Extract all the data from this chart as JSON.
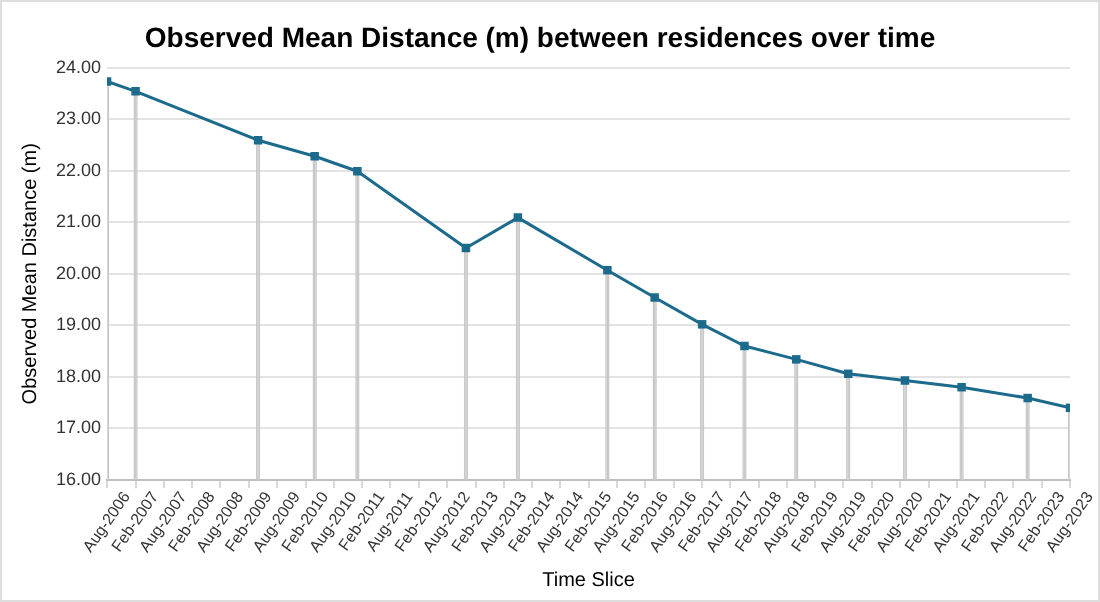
{
  "chart_data": {
    "type": "line",
    "title": "Observed Mean Distance (m) between residences over time",
    "xlabel": "Time Slice",
    "ylabel": "Observed Mean Distance (m)",
    "x": [
      "2006-08",
      "2007-02",
      "2009-04",
      "2010-04",
      "2011-01",
      "2012-12",
      "2013-11",
      "2015-06",
      "2016-04",
      "2017-02",
      "2017-11",
      "2018-10",
      "2019-09",
      "2020-09",
      "2021-09",
      "2022-11",
      "2023-08"
    ],
    "series": [
      {
        "type": "bar",
        "color": "#c8c8c8",
        "values": [
          23.73,
          23.54,
          22.59,
          22.28,
          21.99,
          20.5,
          21.09,
          20.07,
          19.54,
          19.02,
          18.6,
          18.34,
          18.06,
          17.93,
          17.8,
          17.59,
          17.4
        ]
      },
      {
        "color": "#1c6a8c",
        "values": [
          23.73,
          23.54,
          22.59,
          22.28,
          21.99,
          20.5,
          21.09,
          20.07,
          19.54,
          19.02,
          18.6,
          18.34,
          18.06,
          17.93,
          17.8,
          17.59,
          17.4
        ]
      }
    ],
    "xlim": [
      "2006-08",
      "2023-08"
    ],
    "xticks": [
      {
        "value": "2006-08",
        "label": "Aug-2006"
      },
      {
        "value": "2007-02",
        "label": "Feb-2007"
      },
      {
        "value": "2007-08",
        "label": "Aug-2007"
      },
      {
        "value": "2008-02",
        "label": "Feb-2008"
      },
      {
        "value": "2008-08",
        "label": "Aug-2008"
      },
      {
        "value": "2009-02",
        "label": "Feb-2009"
      },
      {
        "value": "2009-08",
        "label": "Aug-2009"
      },
      {
        "value": "2010-02",
        "label": "Feb-2010"
      },
      {
        "value": "2010-08",
        "label": "Aug-2010"
      },
      {
        "value": "2011-02",
        "label": "Feb-2011"
      },
      {
        "value": "2011-08",
        "label": "Aug-2011"
      },
      {
        "value": "2012-02",
        "label": "Feb-2012"
      },
      {
        "value": "2012-08",
        "label": "Aug-2012"
      },
      {
        "value": "2013-02",
        "label": "Feb-2013"
      },
      {
        "value": "2013-08",
        "label": "Aug-2013"
      },
      {
        "value": "2014-02",
        "label": "Feb-2014"
      },
      {
        "value": "2014-08",
        "label": "Aug-2014"
      },
      {
        "value": "2015-02",
        "label": "Feb-2015"
      },
      {
        "value": "2015-08",
        "label": "Aug-2015"
      },
      {
        "value": "2016-02",
        "label": "Feb-2016"
      },
      {
        "value": "2016-08",
        "label": "Aug-2016"
      },
      {
        "value": "2017-02",
        "label": "Feb-2017"
      },
      {
        "value": "2017-08",
        "label": "Aug-2017"
      },
      {
        "value": "2018-02",
        "label": "Feb-2018"
      },
      {
        "value": "2018-08",
        "label": "Aug-2018"
      },
      {
        "value": "2019-02",
        "label": "Feb-2019"
      },
      {
        "value": "2019-08",
        "label": "Aug-2019"
      },
      {
        "value": "2020-02",
        "label": "Feb-2020"
      },
      {
        "value": "2020-08",
        "label": "Aug-2020"
      },
      {
        "value": "2021-02",
        "label": "Feb-2021"
      },
      {
        "value": "2021-08",
        "label": "Aug-2021"
      },
      {
        "value": "2022-02",
        "label": "Feb-2022"
      },
      {
        "value": "2022-08",
        "label": "Aug-2022"
      },
      {
        "value": "2023-02",
        "label": "Feb-2023"
      },
      {
        "value": "2023-08",
        "label": "Aug-2023"
      }
    ],
    "ylim": [
      16,
      24
    ],
    "yticks": [
      {
        "value": 16,
        "label": "16.00"
      },
      {
        "value": 17,
        "label": "17.00"
      },
      {
        "value": 18,
        "label": "18.00"
      },
      {
        "value": 19,
        "label": "19.00"
      },
      {
        "value": 20,
        "label": "20.00"
      },
      {
        "value": 21,
        "label": "21.00"
      },
      {
        "value": 22,
        "label": "22.00"
      },
      {
        "value": 23,
        "label": "23.00"
      },
      {
        "value": 24,
        "label": "24.00"
      }
    ],
    "grid": "y",
    "marker": "square",
    "line_style": "solid"
  }
}
